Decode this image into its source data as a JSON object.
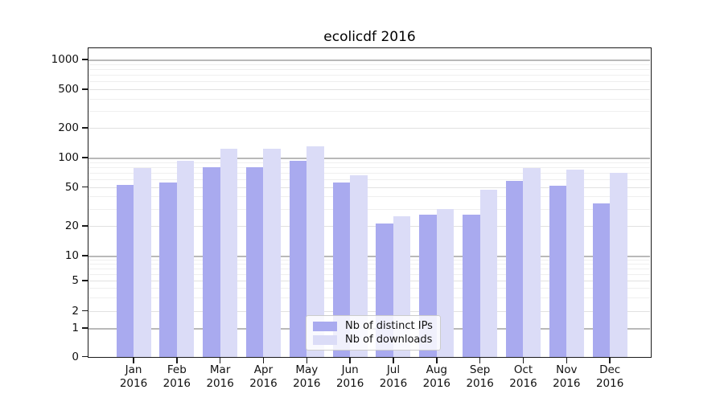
{
  "figure": {
    "title": "ecolicdf 2016"
  },
  "legend": {
    "items": [
      {
        "label": "Nb of distinct IPs",
        "color": "#a9aaef"
      },
      {
        "label": "Nb of downloads",
        "color": "#dbdcf7"
      }
    ]
  },
  "chart_data": {
    "type": "bar",
    "title": "ecolicdf 2016",
    "categories": [
      "Jan",
      "Feb",
      "Mar",
      "Apr",
      "May",
      "Jun",
      "Jul",
      "Aug",
      "Sep",
      "Oct",
      "Nov",
      "Dec"
    ],
    "year_label": "2016",
    "series": [
      {
        "name": "Nb of distinct IPs",
        "color": "#a9aaef",
        "values": [
          52,
          56,
          80,
          79,
          92,
          55,
          21,
          26,
          26,
          58,
          51,
          34
        ]
      },
      {
        "name": "Nb of downloads",
        "color": "#dbdcf7",
        "values": [
          78,
          93,
          122,
          124,
          130,
          66,
          25,
          30,
          47,
          78,
          75,
          70
        ]
      }
    ],
    "xlabel": "",
    "ylabel": "",
    "yscale": "symlog",
    "yticks": [
      0,
      1,
      2,
      5,
      10,
      20,
      50,
      100,
      200,
      500,
      1000
    ],
    "yminor_gridlines": [
      3,
      4,
      6,
      7,
      8,
      9,
      30,
      40,
      60,
      70,
      80,
      90,
      300,
      400,
      600,
      700,
      800,
      900
    ],
    "ylim": [
      0,
      1300
    ],
    "grid": true,
    "legend_position": "lower center",
    "bar_grouping": "paired, IPs bar left of month tick, downloads bar right of month tick"
  }
}
